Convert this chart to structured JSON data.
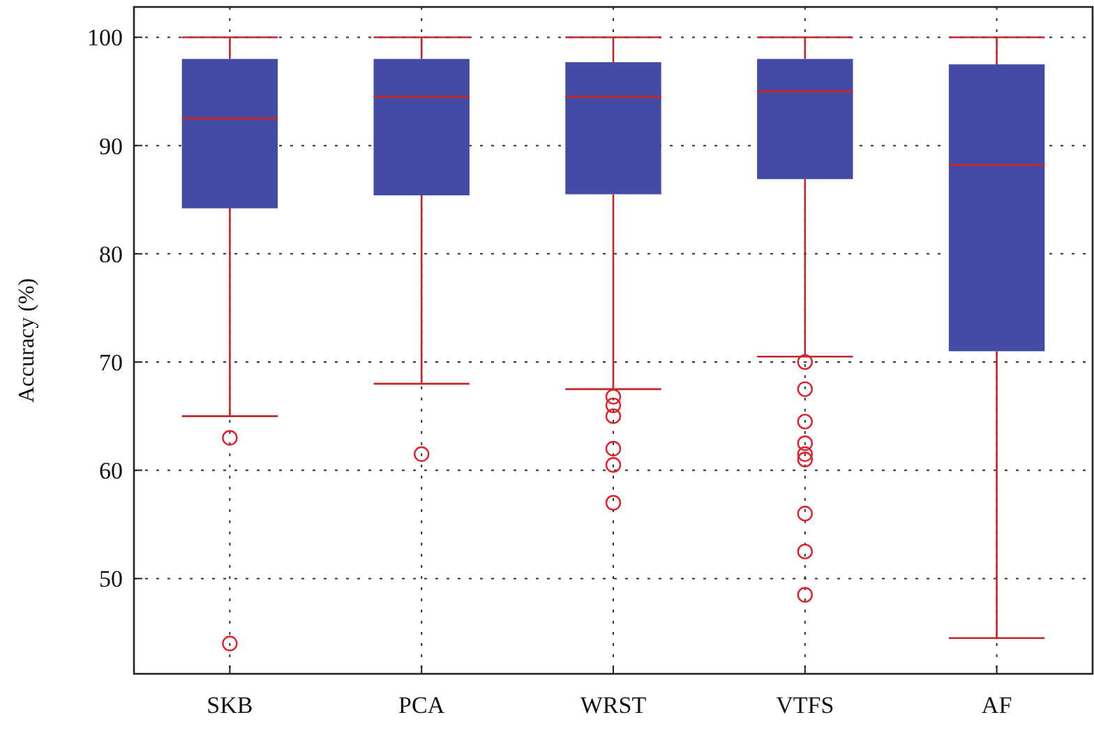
{
  "chart_data": {
    "type": "box",
    "ylabel": "Accuracy (%)",
    "categories": [
      "SKB",
      "PCA",
      "WRST",
      "VTFS",
      "AF"
    ],
    "ylim": [
      41.2,
      102.8
    ],
    "yticks": [
      50,
      60,
      70,
      80,
      90,
      100
    ],
    "grid": true,
    "color": "#434ba5",
    "boxes": [
      {
        "low": 65.0,
        "q1": 84.2,
        "median": 92.5,
        "q3": 98.0,
        "high": 100,
        "outliers": [
          63.0,
          44.0
        ]
      },
      {
        "low": 68.0,
        "q1": 85.4,
        "median": 94.5,
        "q3": 98.0,
        "high": 100,
        "outliers": [
          61.5
        ]
      },
      {
        "low": 67.5,
        "q1": 85.5,
        "median": 94.5,
        "q3": 97.7,
        "high": 100,
        "outliers": [
          66.8,
          66.0,
          65.0,
          62.0,
          60.5,
          57.0
        ]
      },
      {
        "low": 70.5,
        "q1": 86.9,
        "median": 95.0,
        "q3": 98.0,
        "high": 100,
        "outliers": [
          70.0,
          67.5,
          64.5,
          62.5,
          61.5,
          61.0,
          56.0,
          52.5,
          48.5
        ]
      },
      {
        "low": 44.5,
        "q1": 71.0,
        "median": 88.2,
        "q3": 97.5,
        "high": 100
      }
    ]
  }
}
